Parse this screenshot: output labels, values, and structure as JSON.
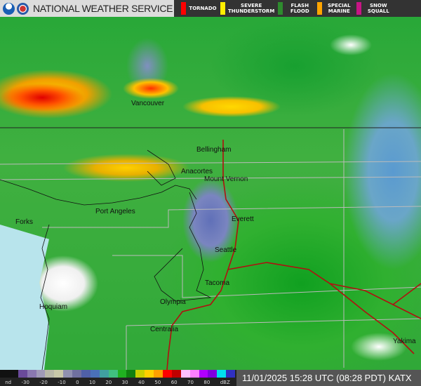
{
  "header": {
    "title": "NATIONAL WEATHER SERVICE",
    "logos": [
      "noaa-logo",
      "nws-logo"
    ]
  },
  "warnings": [
    {
      "label": "TORNADO",
      "color": "#ff0000"
    },
    {
      "label": "SEVERE\nTHUNDERSTORM",
      "color": "#ffee00"
    },
    {
      "label": "FLASH\nFLOOD",
      "color": "#2e8b2e"
    },
    {
      "label": "SPECIAL\nMARINE",
      "color": "#ffa500"
    },
    {
      "label": "SNOW\nSQUALL",
      "color": "#c71585"
    }
  ],
  "map": {
    "cities": [
      "Vancouver",
      "Bellingham",
      "Anacortes",
      "Mount Vernon",
      "Port Angeles",
      "Forks",
      "Everett",
      "Seattle",
      "Tacoma",
      "Olympia",
      "Hoquiam",
      "Centralia",
      "Yakima"
    ]
  },
  "legend": {
    "ticks": [
      "nd",
      "-30",
      "-20",
      "-10",
      "0",
      "10",
      "20",
      "30",
      "40",
      "50",
      "60",
      "70",
      "80",
      "dBZ"
    ],
    "colors": [
      "#111111",
      "#111111",
      "#6a4a9a",
      "#8a78b0",
      "#a09ab8",
      "#b8b8a8",
      "#c8c8a8",
      "#9090b0",
      "#7070a0",
      "#5060a8",
      "#4a70b8",
      "#40a0a0",
      "#40c080",
      "#20b020",
      "#108010",
      "#c8d000",
      "#ffd000",
      "#ffa000",
      "#ff0000",
      "#c00000",
      "#ffc0ff",
      "#ff80ff",
      "#b000ff",
      "#8000e0",
      "#00e0f0",
      "#3030c0"
    ]
  },
  "timestamp": "11/01/2025 15:28 UTC (08:28 PDT)  KATX"
}
